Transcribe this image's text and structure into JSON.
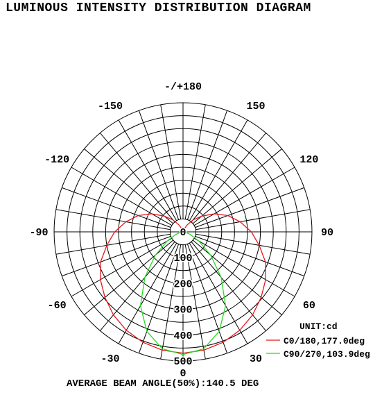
{
  "title": "LUMINOUS INTENSITY DISTRIBUTION DIAGRAM",
  "footer": "AVERAGE BEAM ANGLE(50%):140.5 DEG",
  "colors": {
    "c0": "#e8141b",
    "c90": "#22dd22",
    "grid": "#000000"
  },
  "chart_data": {
    "type": "polar",
    "title": "LUMINOUS INTENSITY DISTRIBUTION DIAGRAM",
    "unit_label": "UNIT:cd",
    "angle_labels": [
      "-/+180",
      "150",
      "120",
      "90",
      "60",
      "30",
      "0",
      "-30",
      "-60",
      "-90",
      "-120",
      "-150"
    ],
    "radial_ticks": [
      "0",
      "100",
      "200",
      "300",
      "400",
      "500"
    ],
    "rmax": 500,
    "radial_step": 50,
    "angular_step_deg": 10,
    "series": [
      {
        "name": "C0/180,177.0deg",
        "angles": [
          -180,
          -160,
          -150,
          -140,
          -130,
          -120,
          -110,
          -100,
          -90,
          -80,
          -70,
          -60,
          -50,
          -40,
          -30,
          -20,
          -10,
          0,
          10,
          20,
          30,
          40,
          50,
          60,
          70,
          80,
          90,
          100,
          110,
          120,
          130,
          140,
          150,
          160,
          180
        ],
        "values": [
          0,
          10,
          30,
          60,
          95,
          140,
          185,
          225,
          265,
          300,
          340,
          370,
          395,
          420,
          440,
          455,
          465,
          470,
          465,
          455,
          440,
          420,
          395,
          370,
          340,
          300,
          265,
          225,
          185,
          140,
          95,
          60,
          30,
          10,
          0
        ]
      },
      {
        "name": "C90/270,103.9deg",
        "angles": [
          -120,
          -110,
          -100,
          -90,
          -80,
          -70,
          -60,
          -50,
          -40,
          -30,
          -20,
          -10,
          0,
          10,
          20,
          30,
          40,
          50,
          60,
          70,
          80,
          90,
          100,
          110,
          120
        ],
        "values": [
          0,
          0,
          0,
          5,
          10,
          30,
          70,
          140,
          230,
          330,
          410,
          460,
          475,
          460,
          410,
          330,
          230,
          140,
          70,
          30,
          10,
          5,
          0,
          0,
          0
        ]
      }
    ]
  }
}
